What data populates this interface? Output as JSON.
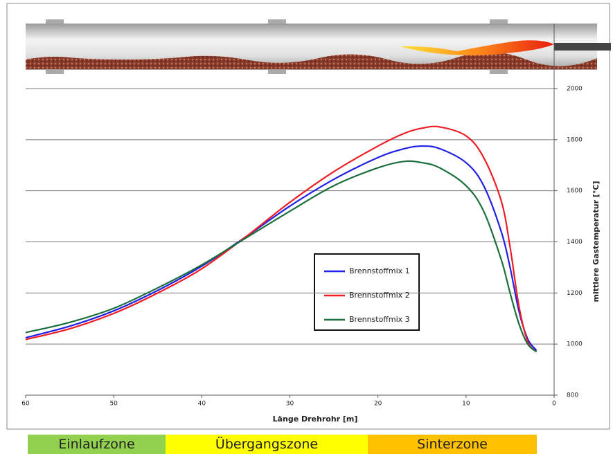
{
  "chart_data": {
    "type": "line",
    "x_label": "Länge Drehrohr [m]",
    "y_label": "mittlere Gastemperatur [°C]",
    "x": [
      60,
      55,
      50,
      45,
      40,
      35,
      30,
      25,
      20,
      17,
      15,
      13,
      10,
      8,
      6,
      5,
      4,
      3,
      2
    ],
    "series": [
      {
        "name": "Brennstoffmix 1",
        "color": "#1f1fe6",
        "values": [
          1025,
          1070,
          1130,
          1210,
          1305,
          1420,
          1540,
          1645,
          1730,
          1765,
          1775,
          1765,
          1710,
          1620,
          1440,
          1300,
          1130,
          1020,
          975
        ]
      },
      {
        "name": "Brennstoffmix 2",
        "color": "#ee1c24",
        "values": [
          1018,
          1060,
          1120,
          1200,
          1295,
          1420,
          1555,
          1675,
          1775,
          1825,
          1845,
          1850,
          1815,
          1730,
          1560,
          1380,
          1150,
          1010,
          970
        ]
      },
      {
        "name": "Brennstoffmix 3",
        "color": "#1a6e3c",
        "values": [
          1045,
          1085,
          1140,
          1220,
          1310,
          1415,
          1520,
          1620,
          1690,
          1715,
          1710,
          1690,
          1620,
          1520,
          1330,
          1200,
          1080,
          1000,
          970
        ]
      }
    ],
    "xlim": [
      60,
      0
    ],
    "xticks": [
      60,
      50,
      40,
      30,
      20,
      10,
      0
    ],
    "ylim": [
      800,
      2000
    ],
    "yticks": [
      800,
      1000,
      1200,
      1400,
      1600,
      1800,
      2000
    ],
    "grid": true
  },
  "zones": [
    "Einlaufzone",
    "Übergangszone",
    "Sinterzone"
  ]
}
